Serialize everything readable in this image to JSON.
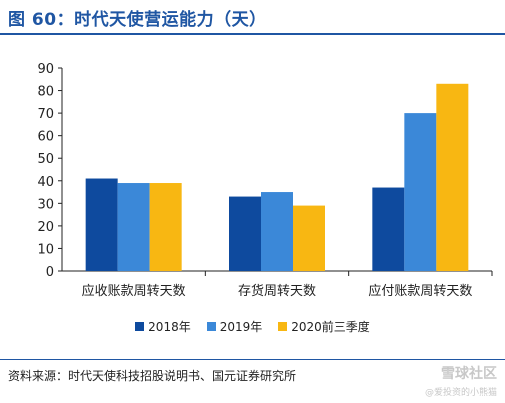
{
  "header": {
    "title": "图 60：时代天使营运能力（天）"
  },
  "chart_data": {
    "type": "bar",
    "title": "",
    "xlabel": "",
    "ylabel": "",
    "ylim": [
      0,
      90
    ],
    "yticks": [
      0,
      10,
      20,
      30,
      40,
      50,
      60,
      70,
      80,
      90
    ],
    "categories": [
      "应收账款周转天数",
      "存货周转天数",
      "应付账款周转天数"
    ],
    "series": [
      {
        "name": "2018年",
        "color": "#0e4a9e",
        "values": [
          41,
          33,
          37
        ]
      },
      {
        "name": "2019年",
        "color": "#3b88d8",
        "values": [
          39,
          35,
          70
        ]
      },
      {
        "name": "2020前三季度",
        "color": "#f8b712",
        "values": [
          39,
          29,
          83
        ]
      }
    ],
    "grid": false,
    "legend_position": "bottom"
  },
  "footer": {
    "source": "资料来源：时代天使科技招股说明书、国元证券研究所",
    "watermark_logo": "雪球社区",
    "watermark_sub": "@爱投资的小熊猫"
  }
}
